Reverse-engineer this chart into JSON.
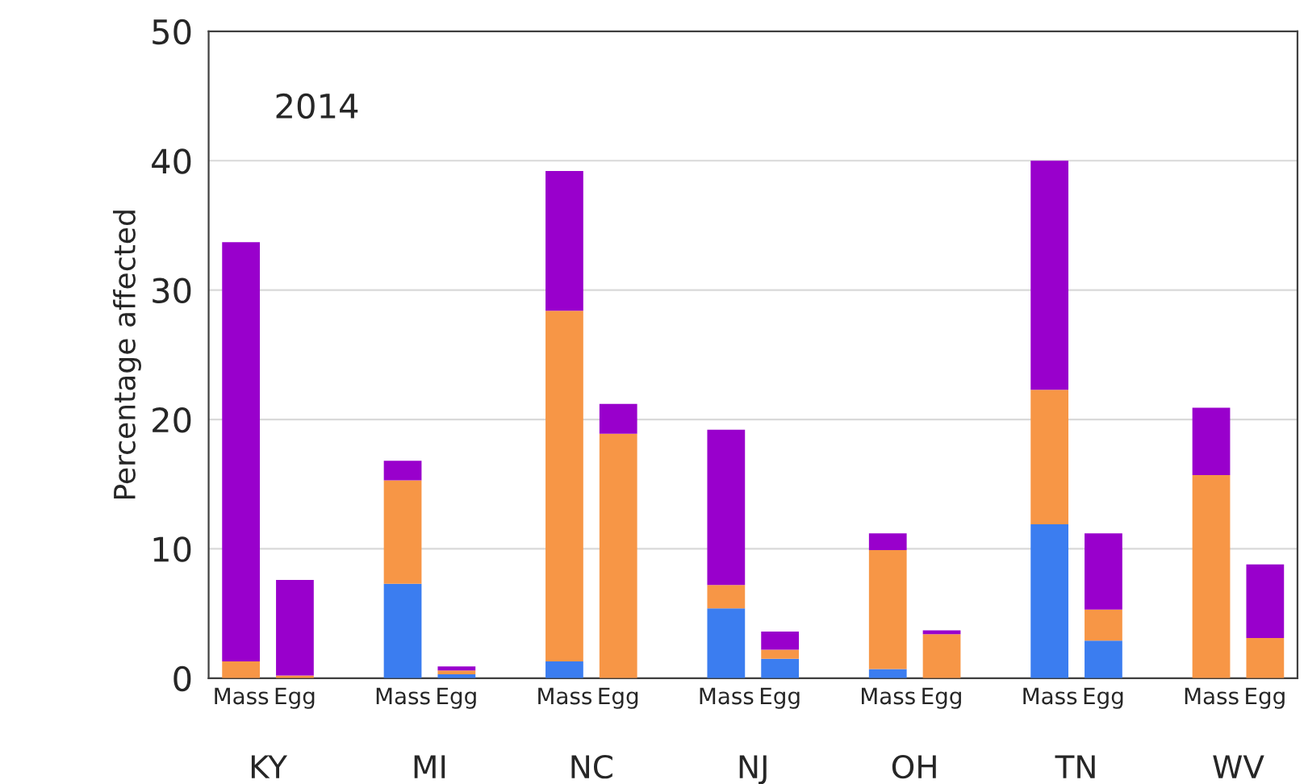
{
  "chart_data": {
    "type": "bar",
    "title": "2014",
    "ylabel": "Percentage affected",
    "categories": [
      "Mass",
      "Egg",
      null,
      "Mass",
      "Egg",
      null,
      "Mass",
      "Egg",
      null,
      "Mass",
      "Egg",
      null,
      "Mass",
      "Egg",
      null,
      "Mass",
      "Egg",
      null,
      "Mass",
      "Egg"
    ],
    "series": [
      {
        "color": "#3b7df0",
        "values": [
          0,
          0,
          null,
          7.3,
          0.3,
          null,
          1.3,
          0,
          null,
          5.4,
          1.5,
          null,
          0.7,
          0,
          null,
          11.9,
          2.9,
          null,
          0,
          0
        ]
      },
      {
        "color": "#f79646",
        "values": [
          1.3,
          0.2,
          null,
          8.0,
          0.3,
          null,
          27.1,
          18.9,
          null,
          1.8,
          0.7,
          null,
          9.2,
          3.4,
          null,
          10.4,
          2.4,
          null,
          15.7,
          3.1
        ]
      },
      {
        "color": "#9900cc",
        "values": [
          32.4,
          7.4,
          null,
          1.5,
          0.3,
          null,
          10.8,
          2.3,
          null,
          12.0,
          1.4,
          null,
          1.3,
          0.3,
          null,
          17.7,
          5.9,
          null,
          5.2,
          5.7
        ]
      }
    ],
    "stacked": true,
    "ylim": [
      0,
      50
    ],
    "yticks": [
      0,
      10,
      20,
      30,
      40,
      50
    ],
    "grid": "y",
    "legend": false,
    "annotations": [
      "KY",
      "MI",
      "NC",
      "NJ",
      "OH",
      "TN",
      "WV"
    ]
  }
}
